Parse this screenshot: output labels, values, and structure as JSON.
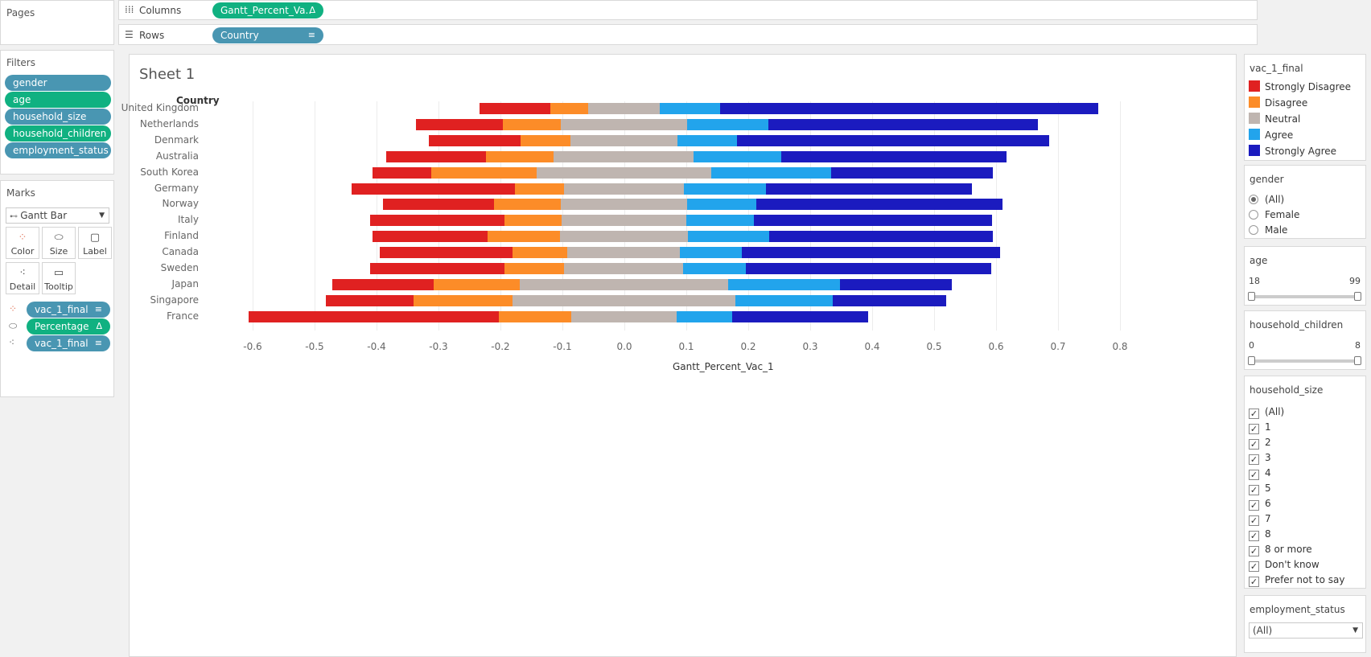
{
  "pages": {
    "title": "Pages"
  },
  "columns": {
    "label": "Columns",
    "pill": "Gantt_Percent_Va..",
    "pill_icon": "Δ"
  },
  "rows": {
    "label": "Rows",
    "pill": "Country",
    "pill_icon": "sort-icon"
  },
  "filters": {
    "title": "Filters",
    "items": [
      "gender",
      "age",
      "household_size",
      "household_children",
      "employment_status"
    ]
  },
  "marks": {
    "title": "Marks",
    "type": "Gantt Bar",
    "buttons": [
      "Color",
      "Size",
      "Label",
      "Detail",
      "Tooltip"
    ],
    "fields": [
      {
        "name": "vac_1_final",
        "icon": "color-icon",
        "tail": "sort-icon"
      },
      {
        "name": "Percentage",
        "icon": "size-icon",
        "tail": "Δ"
      },
      {
        "name": "vac_1_final",
        "icon": "detail-icon",
        "tail": "sort-icon"
      }
    ]
  },
  "sheet": {
    "title": "Sheet 1",
    "row_header": "Country"
  },
  "legend": {
    "title": "vac_1_final",
    "items": [
      {
        "label": "Strongly Disagree",
        "color": "#e02121"
      },
      {
        "label": "Disagree",
        "color": "#fc8c28"
      },
      {
        "label": "Neutral",
        "color": "#bfb5b0"
      },
      {
        "label": "Agree",
        "color": "#22a4ec"
      },
      {
        "label": "Strongly Agree",
        "color": "#1b1bbf"
      }
    ]
  },
  "gender_filter": {
    "title": "gender",
    "options": [
      "(All)",
      "Female",
      "Male"
    ],
    "selected": "(All)"
  },
  "age_filter": {
    "title": "age",
    "min": "18",
    "max": "99"
  },
  "children_filter": {
    "title": "household_children",
    "min": "0",
    "max": "8"
  },
  "size_filter": {
    "title": "household_size",
    "options": [
      "(All)",
      "1",
      "2",
      "3",
      "4",
      "5",
      "6",
      "7",
      "8",
      "8 or more",
      "Don't know",
      "Prefer not to say"
    ]
  },
  "employment_filter": {
    "title": "employment_status",
    "value": "(All)"
  },
  "chart_data": {
    "type": "bar",
    "xlabel": "Gantt_Percent_Vac_1",
    "xlim": [
      -0.66,
      0.8
    ],
    "xticks": [
      "-0.6",
      "-0.5",
      "-0.4",
      "-0.3",
      "-0.2",
      "-0.1",
      "0.0",
      "0.1",
      "0.2",
      "0.3",
      "0.4",
      "0.5",
      "0.6",
      "0.7",
      "0.8"
    ],
    "categories": [
      "Strongly Disagree",
      "Disagree",
      "Neutral",
      "Agree",
      "Strongly Agree"
    ],
    "rows": [
      {
        "country": "United Kingdom",
        "bounds": [
          -0.234,
          -0.119,
          -0.058,
          0.057,
          0.154,
          0.765
        ]
      },
      {
        "country": "Netherlands",
        "bounds": [
          -0.336,
          -0.196,
          -0.102,
          0.101,
          0.232,
          0.667
        ]
      },
      {
        "country": "Denmark",
        "bounds": [
          -0.315,
          -0.168,
          -0.087,
          0.086,
          0.182,
          0.686
        ]
      },
      {
        "country": "Australia",
        "bounds": [
          -0.384,
          -0.224,
          -0.114,
          0.112,
          0.253,
          0.617
        ]
      },
      {
        "country": "South Korea",
        "bounds": [
          -0.406,
          -0.312,
          -0.142,
          0.14,
          0.334,
          0.595
        ]
      },
      {
        "country": "Germany",
        "bounds": [
          -0.44,
          -0.176,
          -0.098,
          0.096,
          0.228,
          0.561
        ]
      },
      {
        "country": "Norway",
        "bounds": [
          -0.39,
          -0.211,
          -0.102,
          0.101,
          0.213,
          0.611
        ]
      },
      {
        "country": "Italy",
        "bounds": [
          -0.41,
          -0.194,
          -0.101,
          0.1,
          0.209,
          0.593
        ]
      },
      {
        "country": "Finland",
        "bounds": [
          -0.406,
          -0.221,
          -0.104,
          0.102,
          0.234,
          0.595
        ]
      },
      {
        "country": "Canada",
        "bounds": [
          -0.395,
          -0.181,
          -0.092,
          0.09,
          0.189,
          0.606
        ]
      },
      {
        "country": "Sweden",
        "bounds": [
          -0.41,
          -0.194,
          -0.097,
          0.095,
          0.196,
          0.592
        ]
      },
      {
        "country": "Japan",
        "bounds": [
          -0.472,
          -0.308,
          -0.169,
          0.168,
          0.348,
          0.528
        ]
      },
      {
        "country": "Singapore",
        "bounds": [
          -0.482,
          -0.34,
          -0.18,
          0.179,
          0.337,
          0.519
        ]
      },
      {
        "country": "France",
        "bounds": [
          -0.606,
          -0.203,
          -0.086,
          0.085,
          0.174,
          0.394
        ]
      }
    ]
  }
}
